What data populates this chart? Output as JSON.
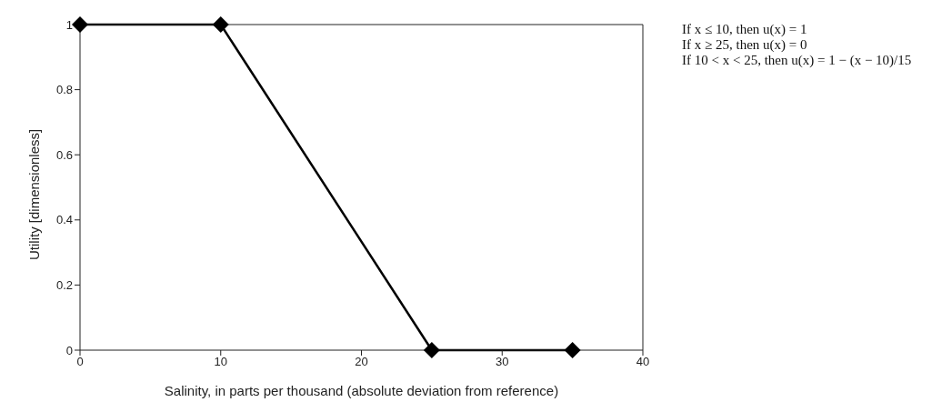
{
  "chart_data": {
    "type": "line",
    "xlabel": "Salinity, in parts per thousand (absolute deviation from reference)",
    "ylabel": "Utility [dimensionless]",
    "x": [
      0,
      10,
      25,
      35
    ],
    "series": [
      {
        "color": "#000000",
        "values": [
          1,
          1,
          0,
          0
        ]
      }
    ],
    "xlim": [
      0,
      40
    ],
    "xticks": [
      0,
      10,
      20,
      30,
      40
    ],
    "ylim": [
      0,
      1
    ],
    "yticks": [
      0,
      0.2,
      0.4,
      0.6,
      0.8,
      1
    ],
    "grid": false,
    "legend": false,
    "marker": "diamond",
    "line_style": "solid",
    "annotations": [
      "If x ≤ 10, then u(x) = 1",
      "If x ≥ 25, then u(x) = 0",
      "If 10 < x < 25, then u(x) = 1 − (x − 10)/15"
    ]
  }
}
